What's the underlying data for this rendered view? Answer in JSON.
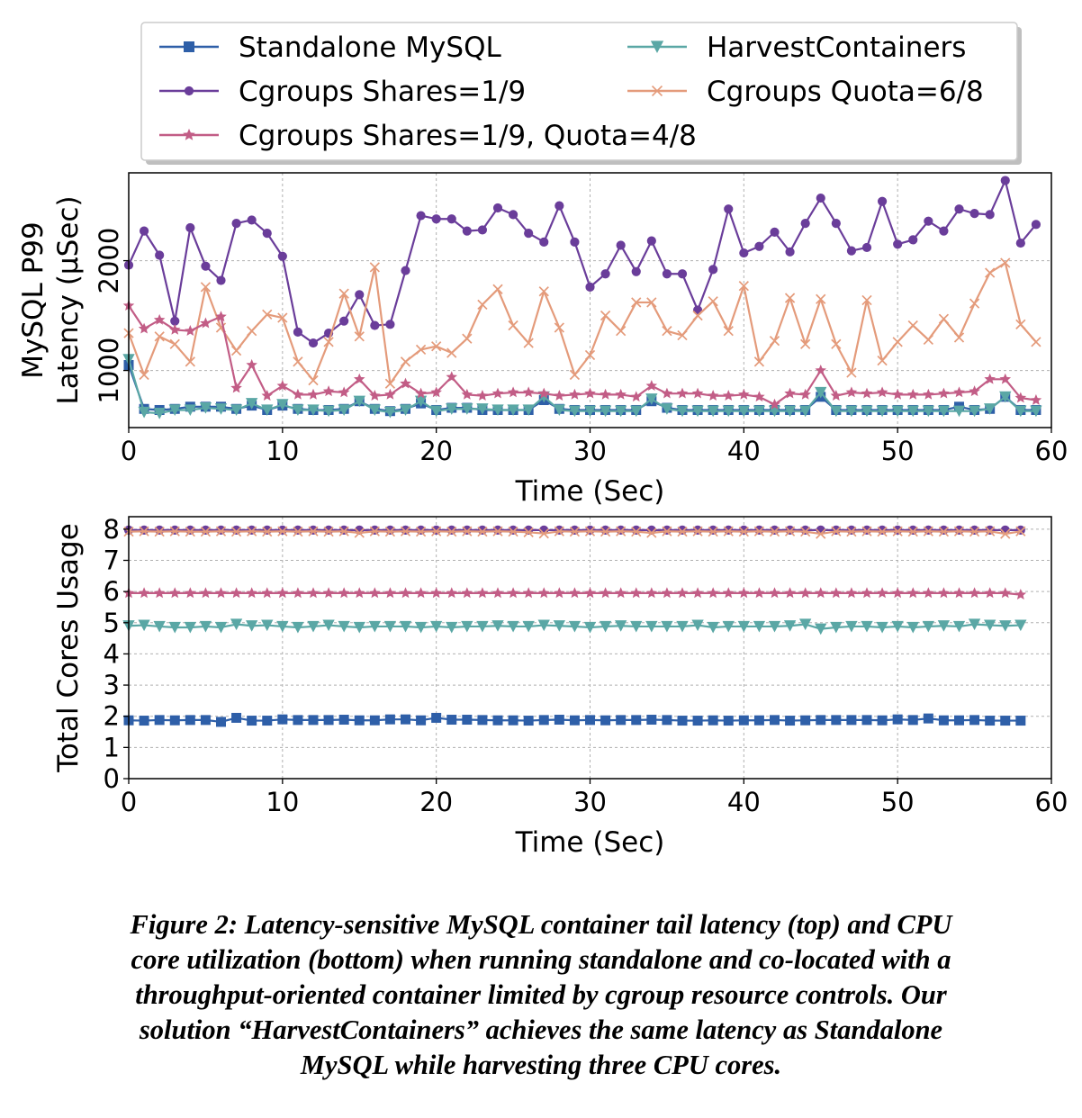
{
  "chart_data": [
    {
      "type": "line",
      "panel": "top",
      "xlabel": "Time (Sec)",
      "ylabel_lines": [
        "MySQL P99",
        "Latency (µSec)"
      ],
      "xlim": [
        0,
        60
      ],
      "ylim": [
        480,
        2800
      ],
      "x_ticks": [
        "0",
        "10",
        "20",
        "30",
        "40",
        "50",
        "60"
      ],
      "y_ticks": [
        "1000",
        "2000"
      ],
      "grid": true,
      "legend_position": "top (outside plot, two columns)",
      "x": [
        0,
        1,
        2,
        3,
        4,
        5,
        6,
        7,
        8,
        9,
        10,
        11,
        12,
        13,
        14,
        15,
        16,
        17,
        18,
        19,
        20,
        21,
        22,
        23,
        24,
        25,
        26,
        27,
        28,
        29,
        30,
        31,
        32,
        33,
        34,
        35,
        36,
        37,
        38,
        39,
        40,
        41,
        42,
        43,
        44,
        45,
        46,
        47,
        48,
        49,
        50,
        51,
        52,
        53,
        54,
        55,
        56,
        57,
        58,
        59
      ],
      "series": [
        {
          "name": "Standalone MySQL",
          "color": "#2e5fa8",
          "marker": "square",
          "values": [
            1050,
            650,
            640,
            650,
            670,
            670,
            670,
            650,
            680,
            640,
            680,
            650,
            640,
            640,
            650,
            720,
            650,
            630,
            650,
            700,
            640,
            660,
            660,
            640,
            640,
            640,
            640,
            730,
            650,
            640,
            640,
            640,
            640,
            640,
            720,
            660,
            640,
            640,
            640,
            640,
            640,
            640,
            640,
            640,
            640,
            760,
            640,
            640,
            640,
            640,
            640,
            640,
            640,
            640,
            670,
            640,
            650,
            760,
            640,
            640
          ]
        },
        {
          "name": "Cgroups Shares=1/9",
          "color": "#6a3d9a",
          "marker": "dot",
          "values": [
            1960,
            2270,
            2050,
            1450,
            2300,
            1950,
            1820,
            2340,
            2370,
            2250,
            2040,
            1350,
            1250,
            1340,
            1450,
            1690,
            1410,
            1420,
            1910,
            2410,
            2380,
            2380,
            2270,
            2280,
            2480,
            2420,
            2250,
            2170,
            2500,
            2170,
            1760,
            1880,
            2140,
            1900,
            2180,
            1880,
            1880,
            1550,
            1920,
            2470,
            2070,
            2130,
            2260,
            2080,
            2340,
            2570,
            2340,
            2090,
            2120,
            2540,
            2150,
            2190,
            2360,
            2270,
            2470,
            2430,
            2420,
            2730,
            2160,
            2330
          ]
        },
        {
          "name": "HarvestContainers",
          "color": "#5aa7a5",
          "marker": "triangle_down",
          "values": [
            1100,
            620,
            610,
            640,
            640,
            660,
            650,
            640,
            700,
            640,
            690,
            640,
            640,
            630,
            640,
            720,
            640,
            620,
            640,
            720,
            630,
            650,
            650,
            650,
            640,
            640,
            640,
            760,
            640,
            630,
            630,
            630,
            630,
            630,
            740,
            650,
            630,
            630,
            630,
            630,
            630,
            630,
            630,
            630,
            630,
            800,
            630,
            630,
            630,
            630,
            630,
            630,
            630,
            630,
            630,
            630,
            650,
            760,
            630,
            630
          ]
        },
        {
          "name": "Cgroups Quota=6/8",
          "color": "#e49b7b",
          "marker": "x",
          "values": [
            1340,
            960,
            1310,
            1240,
            1080,
            1760,
            1390,
            1180,
            1360,
            1510,
            1480,
            1080,
            910,
            1260,
            1700,
            1310,
            1940,
            880,
            1080,
            1190,
            1220,
            1160,
            1290,
            1600,
            1740,
            1410,
            1250,
            1720,
            1390,
            960,
            1140,
            1500,
            1360,
            1620,
            1620,
            1360,
            1320,
            1500,
            1630,
            1360,
            1770,
            1080,
            1270,
            1660,
            1240,
            1650,
            1240,
            980,
            1640,
            1090,
            1260,
            1410,
            1280,
            1470,
            1300,
            1610,
            1890,
            1980,
            1420,
            1260
          ]
        },
        {
          "name": "Cgroups Shares=1/9, Quota=4/8",
          "color": "#c25d86",
          "marker": "star",
          "values": [
            1590,
            1380,
            1460,
            1370,
            1360,
            1430,
            1490,
            840,
            1050,
            770,
            860,
            780,
            780,
            810,
            800,
            920,
            770,
            780,
            880,
            790,
            800,
            940,
            780,
            770,
            790,
            800,
            800,
            790,
            770,
            780,
            790,
            780,
            780,
            760,
            860,
            790,
            790,
            790,
            770,
            770,
            780,
            760,
            690,
            790,
            780,
            1000,
            770,
            800,
            790,
            800,
            780,
            780,
            780,
            790,
            800,
            810,
            920,
            920,
            750,
            730
          ]
        }
      ]
    },
    {
      "type": "line",
      "panel": "bottom",
      "xlabel": "Time (Sec)",
      "ylabel": "Total Cores Usage",
      "xlim": [
        0,
        60
      ],
      "ylim": [
        0,
        8.4
      ],
      "x_ticks": [
        "0",
        "10",
        "20",
        "30",
        "40",
        "50",
        "60"
      ],
      "y_ticks": [
        "0",
        "1",
        "2",
        "3",
        "4",
        "5",
        "6",
        "7",
        "8"
      ],
      "grid": true,
      "x": [
        0,
        1,
        2,
        3,
        4,
        5,
        6,
        7,
        8,
        9,
        10,
        11,
        12,
        13,
        14,
        15,
        16,
        17,
        18,
        19,
        20,
        21,
        22,
        23,
        24,
        25,
        26,
        27,
        28,
        29,
        30,
        31,
        32,
        33,
        34,
        35,
        36,
        37,
        38,
        39,
        40,
        41,
        42,
        43,
        44,
        45,
        46,
        47,
        48,
        49,
        50,
        51,
        52,
        53,
        54,
        55,
        56,
        57,
        58
      ],
      "series": [
        {
          "name": "Standalone MySQL",
          "color": "#2e5fa8",
          "marker": "square",
          "values": [
            1.87,
            1.86,
            1.88,
            1.87,
            1.88,
            1.88,
            1.82,
            1.95,
            1.86,
            1.86,
            1.9,
            1.88,
            1.88,
            1.88,
            1.89,
            1.87,
            1.87,
            1.9,
            1.9,
            1.87,
            1.95,
            1.89,
            1.89,
            1.88,
            1.87,
            1.87,
            1.86,
            1.88,
            1.89,
            1.87,
            1.88,
            1.87,
            1.88,
            1.88,
            1.89,
            1.88,
            1.86,
            1.86,
            1.87,
            1.86,
            1.87,
            1.87,
            1.88,
            1.86,
            1.87,
            1.88,
            1.88,
            1.88,
            1.88,
            1.87,
            1.9,
            1.88,
            1.93,
            1.87,
            1.87,
            1.88,
            1.86,
            1.86,
            1.86
          ]
        },
        {
          "name": "Cgroups Shares=1/9",
          "color": "#6a3d9a",
          "marker": "dot",
          "values": [
            7.97,
            7.97,
            7.97,
            7.97,
            7.97,
            7.97,
            7.97,
            7.97,
            7.97,
            7.97,
            7.97,
            7.97,
            7.97,
            7.97,
            7.97,
            7.97,
            7.97,
            7.97,
            7.97,
            7.97,
            7.97,
            7.97,
            7.97,
            7.97,
            7.97,
            7.97,
            7.97,
            7.97,
            7.97,
            7.97,
            7.97,
            7.97,
            7.97,
            7.97,
            7.97,
            7.97,
            7.97,
            7.97,
            7.97,
            7.97,
            7.97,
            7.97,
            7.97,
            7.97,
            7.97,
            7.97,
            7.97,
            7.97,
            7.97,
            7.97,
            7.97,
            7.97,
            7.97,
            7.97,
            7.97,
            7.97,
            7.97,
            7.97,
            7.97
          ]
        },
        {
          "name": "HarvestContainers",
          "color": "#5aa7a5",
          "marker": "triangle_down",
          "values": [
            4.9,
            4.92,
            4.88,
            4.85,
            4.85,
            4.88,
            4.85,
            4.95,
            4.9,
            4.92,
            4.88,
            4.85,
            4.88,
            4.92,
            4.88,
            4.85,
            4.88,
            4.88,
            4.88,
            4.85,
            4.88,
            4.85,
            4.88,
            4.88,
            4.9,
            4.88,
            4.88,
            4.92,
            4.9,
            4.88,
            4.85,
            4.88,
            4.9,
            4.88,
            4.88,
            4.88,
            4.88,
            4.92,
            4.85,
            4.88,
            4.88,
            4.88,
            4.88,
            4.9,
            4.95,
            4.8,
            4.85,
            4.88,
            4.88,
            4.85,
            4.88,
            4.85,
            4.88,
            4.9,
            4.88,
            4.95,
            4.92,
            4.9,
            4.92
          ]
        },
        {
          "name": "Cgroups Quota=6/8",
          "color": "#e49b7b",
          "marker": "x",
          "values": [
            7.92,
            7.93,
            7.92,
            7.93,
            7.92,
            7.92,
            7.93,
            7.92,
            7.93,
            7.92,
            7.93,
            7.92,
            7.93,
            7.92,
            7.93,
            7.88,
            7.93,
            7.92,
            7.93,
            7.92,
            7.93,
            7.92,
            7.93,
            7.92,
            7.93,
            7.92,
            7.9,
            7.86,
            7.93,
            7.92,
            7.93,
            7.92,
            7.93,
            7.92,
            7.88,
            7.93,
            7.92,
            7.93,
            7.92,
            7.93,
            7.92,
            7.93,
            7.92,
            7.93,
            7.92,
            7.85,
            7.93,
            7.92,
            7.93,
            7.92,
            7.93,
            7.92,
            7.93,
            7.92,
            7.93,
            7.92,
            7.93,
            7.85,
            7.93
          ]
        },
        {
          "name": "Cgroups Shares=1/9, Quota=4/8",
          "color": "#c25d86",
          "marker": "star",
          "values": [
            5.95,
            5.95,
            5.95,
            5.95,
            5.95,
            5.95,
            5.95,
            5.95,
            5.95,
            5.95,
            5.95,
            5.95,
            5.95,
            5.95,
            5.95,
            5.95,
            5.95,
            5.95,
            5.95,
            5.95,
            5.95,
            5.95,
            5.95,
            5.95,
            5.95,
            5.95,
            5.95,
            5.95,
            5.95,
            5.95,
            5.95,
            5.95,
            5.95,
            5.95,
            5.95,
            5.95,
            5.95,
            5.95,
            5.95,
            5.95,
            5.95,
            5.95,
            5.95,
            5.95,
            5.95,
            5.95,
            5.95,
            5.95,
            5.95,
            5.95,
            5.95,
            5.95,
            5.95,
            5.95,
            5.95,
            5.95,
            5.95,
            5.95,
            5.9
          ]
        }
      ]
    }
  ],
  "legend": [
    {
      "name": "Standalone MySQL",
      "color": "#2e5fa8",
      "marker": "square"
    },
    {
      "name": "HarvestContainers",
      "color": "#5aa7a5",
      "marker": "triangle_down"
    },
    {
      "name": "Cgroups Shares=1/9",
      "color": "#6a3d9a",
      "marker": "dot"
    },
    {
      "name": "Cgroups Quota=6/8",
      "color": "#e49b7b",
      "marker": "x"
    },
    {
      "name": "Cgroups Shares=1/9, Quota=4/8",
      "color": "#c25d86",
      "marker": "star"
    }
  ],
  "caption": {
    "lines": [
      "Figure 2: Latency-sensitive MySQL container tail latency (top) and CPU",
      "core utilization (bottom) when running standalone and co-located with a",
      "throughput-oriented container limited by cgroup resource controls. Our",
      "solution “HarvestContainers” achieves the same latency as Standalone",
      "MySQL while harvesting three CPU cores."
    ]
  }
}
